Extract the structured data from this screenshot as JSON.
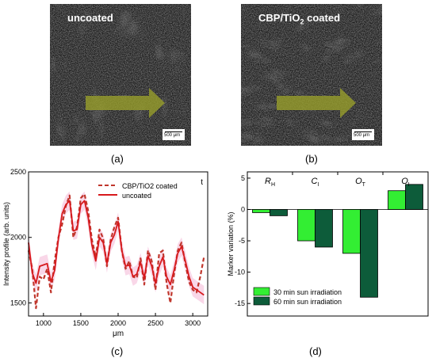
{
  "panel_a": {
    "label": "uncoated",
    "scale_label": "500 μm",
    "caption": "(a)"
  },
  "panel_b": {
    "label_main": "CBP/TiO",
    "label_sub": "2",
    "label_tail": " coated",
    "scale_label": "500 μm",
    "caption": "(b)"
  },
  "panel_c": {
    "caption": "(c)"
  },
  "panel_d": {
    "caption": "(d)"
  },
  "chart_data": [
    {
      "type": "line",
      "xlabel": "μm",
      "ylabel": "Intensity profile (arb. units)",
      "corner_label": "t",
      "xlim": [
        800,
        3200
      ],
      "ylim": [
        1400,
        2500
      ],
      "xticks": [
        1000,
        1500,
        2000,
        2500,
        3000
      ],
      "yticks": [
        1500,
        2000,
        2500
      ],
      "legend_position": "top-right",
      "series": [
        {
          "name": "CBP/TiO2 coated",
          "color": "#c0362c",
          "style": "dashed",
          "x": [
            800,
            850,
            900,
            950,
            1000,
            1050,
            1100,
            1150,
            1200,
            1250,
            1300,
            1350,
            1400,
            1450,
            1500,
            1550,
            1600,
            1650,
            1700,
            1750,
            1800,
            1850,
            1900,
            1950,
            2000,
            2050,
            2100,
            2150,
            2200,
            2250,
            2300,
            2350,
            2400,
            2450,
            2500,
            2550,
            2600,
            2650,
            2700,
            2750,
            2800,
            2850,
            2900,
            2950,
            3000,
            3050,
            3100,
            3150
          ],
          "y": [
            1900,
            1760,
            1460,
            1700,
            1680,
            1760,
            1580,
            1820,
            2000,
            2100,
            2240,
            2320,
            2000,
            2080,
            2300,
            2330,
            2200,
            1980,
            1850,
            2060,
            1990,
            1780,
            1980,
            2080,
            2150,
            1900,
            1760,
            1820,
            1700,
            1690,
            1840,
            1640,
            1900,
            1820,
            1600,
            1880,
            1900,
            1650,
            1500,
            1720,
            1900,
            1960,
            1800,
            1660,
            1600,
            1580,
            1700,
            1850
          ]
        },
        {
          "name": "uncoated",
          "color": "#d7191c",
          "style": "solid",
          "x": [
            800,
            850,
            900,
            950,
            1000,
            1050,
            1100,
            1150,
            1200,
            1250,
            1300,
            1350,
            1400,
            1450,
            1500,
            1550,
            1600,
            1650,
            1700,
            1750,
            1800,
            1850,
            1900,
            1950,
            2000,
            2050,
            2100,
            2150,
            2200,
            2250,
            2300,
            2350,
            2400,
            2450,
            2500,
            2550,
            2600,
            2650,
            2700,
            2750,
            2800,
            2850,
            2900,
            2950,
            3000,
            3050,
            3100,
            3150
          ],
          "y": [
            1960,
            1730,
            1650,
            1780,
            1790,
            1800,
            1660,
            1750,
            1990,
            2180,
            2250,
            2280,
            2050,
            2060,
            2250,
            2280,
            2150,
            1940,
            1820,
            2000,
            1960,
            1800,
            1960,
            2020,
            2120,
            1900,
            1780,
            1790,
            1700,
            1720,
            1810,
            1690,
            1860,
            1780,
            1650,
            1780,
            1850,
            1700,
            1640,
            1750,
            1880,
            1930,
            1820,
            1700,
            1620,
            1600,
            1580,
            1560
          ]
        }
      ]
    },
    {
      "type": "bar",
      "ylabel": "Marker variation (%)",
      "categories": [
        "RH",
        "CI",
        "OT",
        "OI"
      ],
      "category_labels": [
        {
          "main": "R",
          "sub": "H"
        },
        {
          "main": "C",
          "sub": "I"
        },
        {
          "main": "O",
          "sub": "T"
        },
        {
          "main": "O",
          "sub": "I"
        }
      ],
      "ylim": [
        -17,
        6
      ],
      "yticks": [
        5,
        0,
        -5,
        -10,
        -15
      ],
      "legend_position": "bottom-left",
      "series": [
        {
          "name": "30 min sun irradiation",
          "color": "#33ee33",
          "values": [
            -0.5,
            -5,
            -7,
            3
          ]
        },
        {
          "name": "60 min sun irradiation",
          "color": "#0d5c3a",
          "values": [
            -1,
            -6,
            -14,
            4
          ]
        }
      ]
    }
  ]
}
